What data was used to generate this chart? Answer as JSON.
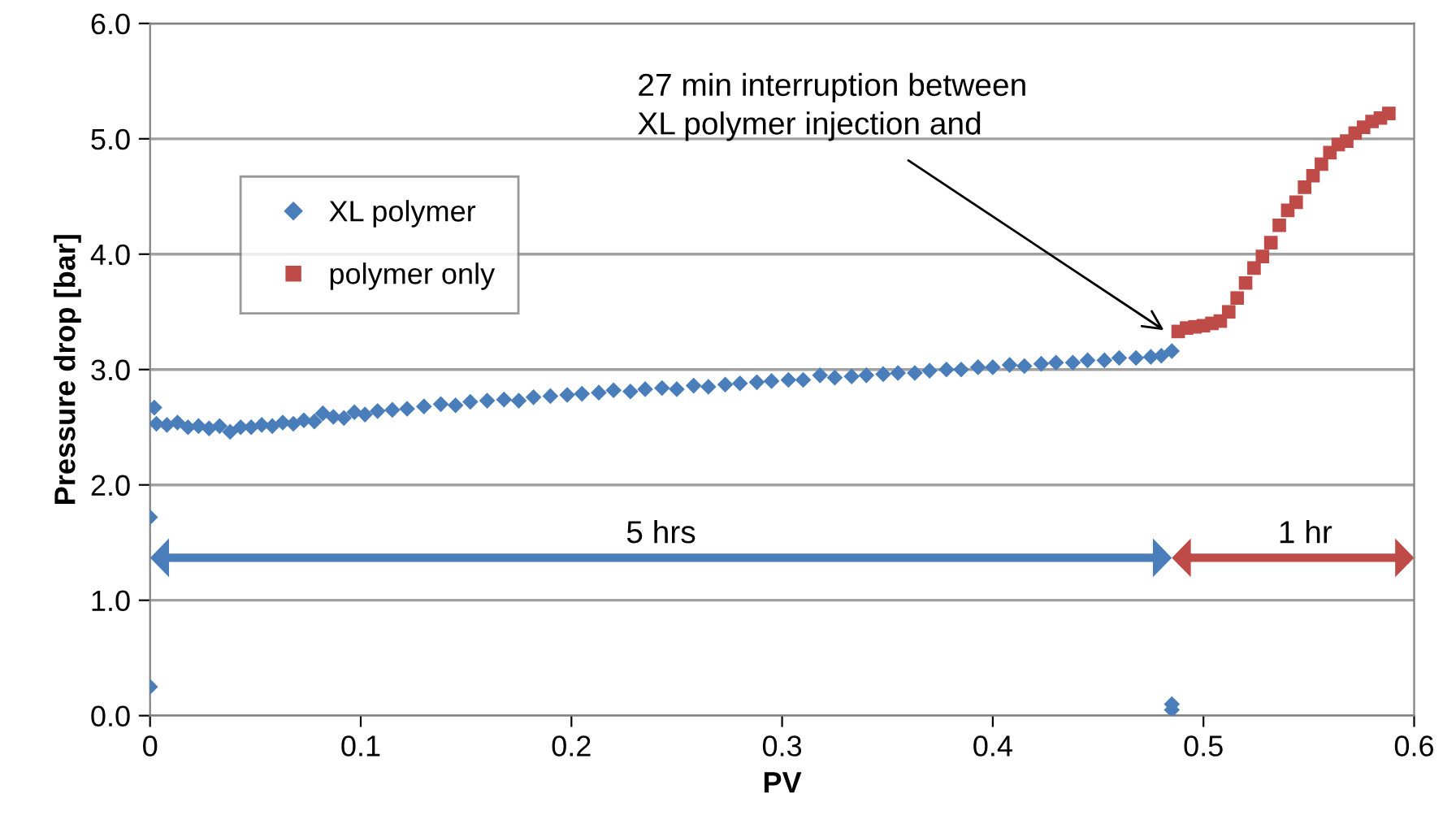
{
  "chart_data": {
    "type": "scatter",
    "xlabel": "PV",
    "ylabel": "Pressure drop [bar]",
    "xlim": [
      0,
      0.6
    ],
    "xticks": [
      0,
      0.1,
      0.2,
      0.3,
      0.4,
      0.5,
      0.6
    ],
    "ylim": [
      0,
      6
    ],
    "yticks": [
      {
        "value": 0,
        "label": "0.0"
      },
      {
        "value": 1,
        "label": "1.0"
      },
      {
        "value": 2,
        "label": "2.0"
      },
      {
        "value": 3,
        "label": "3.0"
      },
      {
        "value": 4,
        "label": "4.0"
      },
      {
        "value": 5,
        "label": "5.0"
      },
      {
        "value": 6,
        "label": "6.0"
      }
    ],
    "grid": "y",
    "legend": "top left",
    "series": [
      {
        "name": "XL polymer",
        "color": "#4a7ebb",
        "marker": "diamond",
        "x": [
          0,
          0,
          0.002,
          0.003,
          0.008,
          0.013,
          0.018,
          0.023,
          0.028,
          0.033,
          0.038,
          0.043,
          0.048,
          0.053,
          0.058,
          0.063,
          0.068,
          0.073,
          0.078,
          0.082,
          0.087,
          0.092,
          0.097,
          0.102,
          0.108,
          0.115,
          0.122,
          0.13,
          0.138,
          0.145,
          0.152,
          0.16,
          0.168,
          0.175,
          0.182,
          0.19,
          0.198,
          0.205,
          0.213,
          0.22,
          0.228,
          0.235,
          0.243,
          0.25,
          0.258,
          0.265,
          0.273,
          0.28,
          0.288,
          0.295,
          0.303,
          0.31,
          0.318,
          0.325,
          0.333,
          0.34,
          0.348,
          0.355,
          0.363,
          0.37,
          0.378,
          0.385,
          0.393,
          0.4,
          0.408,
          0.415,
          0.423,
          0.43,
          0.438,
          0.445,
          0.453,
          0.46,
          0.468,
          0.475,
          0.48,
          0.485,
          0.485,
          0.485
        ],
        "values": [
          1.72,
          0.25,
          2.67,
          2.53,
          2.52,
          2.54,
          2.5,
          2.51,
          2.49,
          2.51,
          2.46,
          2.5,
          2.5,
          2.52,
          2.51,
          2.54,
          2.53,
          2.56,
          2.55,
          2.62,
          2.59,
          2.58,
          2.63,
          2.61,
          2.64,
          2.65,
          2.66,
          2.68,
          2.7,
          2.69,
          2.72,
          2.73,
          2.74,
          2.73,
          2.76,
          2.77,
          2.78,
          2.79,
          2.8,
          2.82,
          2.81,
          2.83,
          2.84,
          2.83,
          2.86,
          2.85,
          2.87,
          2.88,
          2.89,
          2.9,
          2.91,
          2.91,
          2.95,
          2.93,
          2.94,
          2.95,
          2.96,
          2.97,
          2.97,
          2.99,
          3.0,
          3.0,
          3.02,
          3.02,
          3.04,
          3.03,
          3.05,
          3.06,
          3.06,
          3.08,
          3.08,
          3.1,
          3.1,
          3.11,
          3.12,
          3.16,
          0.1,
          0.05
        ]
      },
      {
        "name": "polymer only",
        "color": "#be4b48",
        "marker": "square",
        "x": [
          0.488,
          0.492,
          0.496,
          0.5,
          0.504,
          0.508,
          0.512,
          0.516,
          0.52,
          0.524,
          0.528,
          0.532,
          0.536,
          0.54,
          0.544,
          0.548,
          0.552,
          0.556,
          0.56,
          0.564,
          0.568,
          0.572,
          0.576,
          0.58,
          0.584,
          0.588
        ],
        "values": [
          3.33,
          3.36,
          3.37,
          3.38,
          3.4,
          3.42,
          3.5,
          3.62,
          3.75,
          3.88,
          3.98,
          4.1,
          4.25,
          4.38,
          4.45,
          4.58,
          4.68,
          4.78,
          4.88,
          4.95,
          4.98,
          5.05,
          5.1,
          5.15,
          5.18,
          5.22
        ]
      }
    ],
    "annotations": [
      {
        "text": "27 min interruption between\nXL polymer injection and",
        "x": 0.483,
        "y": 3.32
      },
      "5 hrs",
      "1 hr"
    ]
  }
}
